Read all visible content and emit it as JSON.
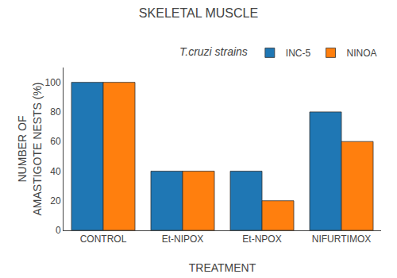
{
  "chart_data": {
    "type": "bar",
    "title": "SKELETAL MUSCLE",
    "xlabel": "TREATMENT",
    "ylabel": "NUMBER OF\nAMASTIGOTE NESTS (%)",
    "categories": [
      "CONTROL",
      "Et-NIPOX",
      "Et-NPOX",
      "NIFURTIMOX"
    ],
    "series": [
      {
        "name": "INC-5",
        "values": [
          100,
          40,
          40,
          80
        ]
      },
      {
        "name": "NINOA",
        "values": [
          100,
          40,
          20,
          60
        ]
      }
    ],
    "legend_title": "T.cruzi strains",
    "legend": "upper right",
    "ylim": [
      0,
      110
    ],
    "yticks": [
      0,
      20,
      40,
      60,
      80,
      100
    ],
    "grid": false
  }
}
